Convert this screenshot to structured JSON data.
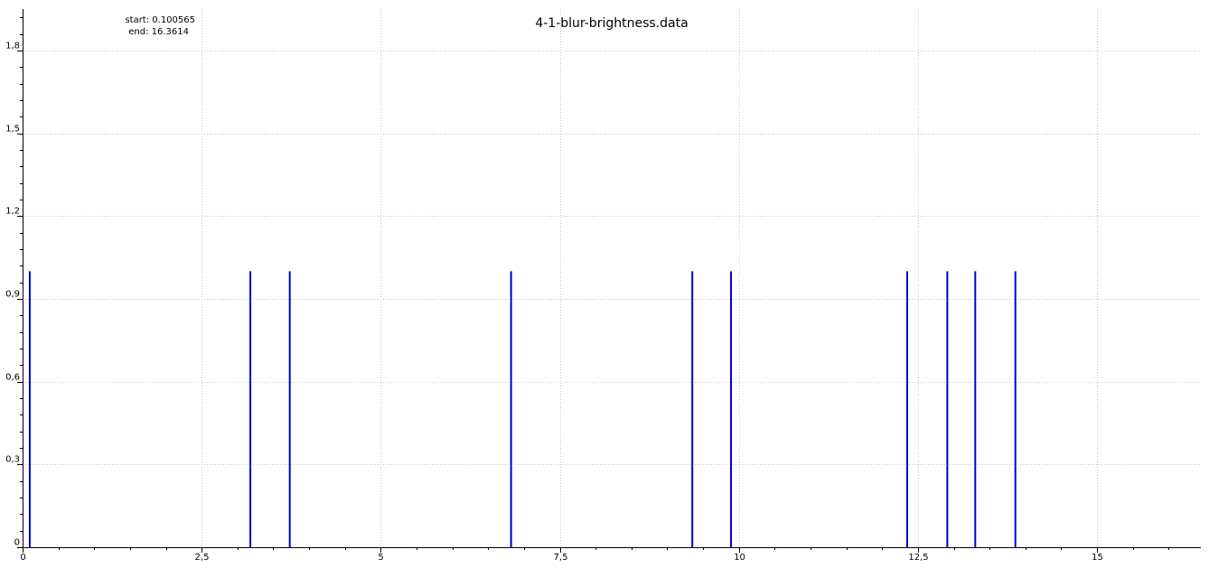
{
  "chart_data": {
    "type": "bar",
    "title": "4-1-blur-brightness.data",
    "info": {
      "start": "start: 0.100565",
      "end": "end: 16.3614"
    },
    "xlim": [
      0,
      16.45
    ],
    "ylim": [
      0,
      1.95
    ],
    "x_ticks": [
      {
        "value": 0,
        "label": "0"
      },
      {
        "value": 2.5,
        "label": "2,5"
      },
      {
        "value": 5,
        "label": "5"
      },
      {
        "value": 7.5,
        "label": "7,5"
      },
      {
        "value": 10,
        "label": "10"
      },
      {
        "value": 12.5,
        "label": "12,5"
      },
      {
        "value": 15,
        "label": "15"
      }
    ],
    "y_ticks": [
      {
        "value": 0,
        "label": "0"
      },
      {
        "value": 0.3,
        "label": "0,3"
      },
      {
        "value": 0.6,
        "label": "0,6"
      },
      {
        "value": 0.9,
        "label": "0,9"
      },
      {
        "value": 1.2,
        "label": "1,2"
      },
      {
        "value": 1.5,
        "label": "1,5"
      },
      {
        "value": 1.8,
        "label": "1,8"
      }
    ],
    "grid": true,
    "series": [
      {
        "x": [
          0.1,
          3.18,
          3.73,
          6.82,
          9.35,
          9.89,
          12.35,
          12.91,
          13.3,
          13.86
        ],
        "values": [
          1,
          1,
          1,
          1,
          1,
          1,
          1,
          1,
          1,
          1
        ],
        "color": "#0000cc"
      }
    ]
  }
}
